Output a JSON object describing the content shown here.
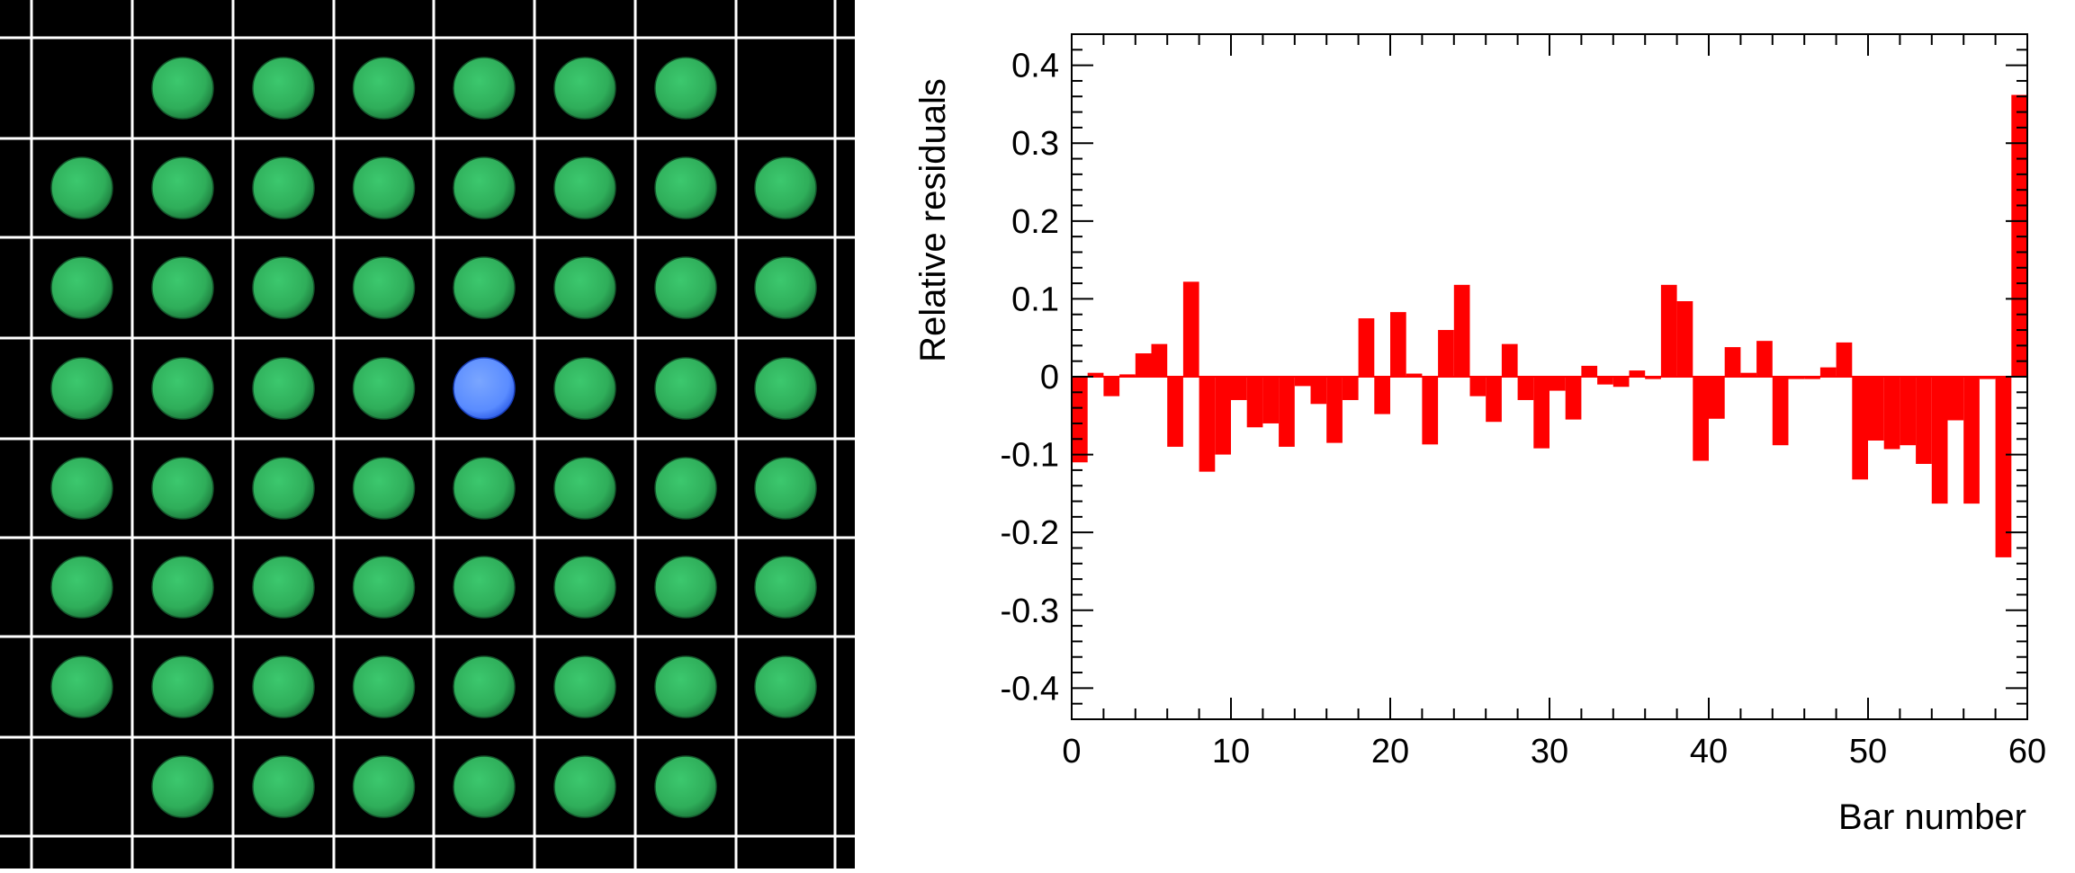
{
  "photo": {
    "background_color": "#000000",
    "grid_color": "#ffffff",
    "disc_color": "#2fae5a",
    "highlight_color": "#5a8cff",
    "rows": [
      [
        "empty",
        "disc",
        "disc",
        "disc",
        "disc",
        "disc",
        "disc",
        "empty"
      ],
      [
        "disc",
        "disc",
        "disc",
        "disc",
        "disc",
        "disc",
        "disc",
        "disc"
      ],
      [
        "disc",
        "disc",
        "disc",
        "disc",
        "disc",
        "disc",
        "disc",
        "disc"
      ],
      [
        "disc",
        "disc",
        "disc",
        "disc",
        "highlight",
        "disc",
        "disc",
        "disc"
      ],
      [
        "disc",
        "disc",
        "disc",
        "disc",
        "disc",
        "disc",
        "disc",
        "disc"
      ],
      [
        "disc",
        "disc",
        "disc",
        "disc",
        "disc",
        "disc",
        "disc",
        "disc"
      ],
      [
        "disc",
        "disc",
        "disc",
        "disc",
        "disc",
        "disc",
        "disc",
        "disc"
      ],
      [
        "empty",
        "disc",
        "disc",
        "disc",
        "disc",
        "disc",
        "disc",
        "empty"
      ]
    ]
  },
  "chart_data": {
    "type": "bar",
    "xlabel": "Bar number",
    "ylabel": "Relative residuals",
    "xlim": [
      0,
      60
    ],
    "ylim": [
      -0.44,
      0.44
    ],
    "xticks": [
      0,
      10,
      20,
      30,
      40,
      50,
      60
    ],
    "yticks": [
      -0.4,
      -0.3,
      -0.2,
      -0.1,
      0,
      0.1,
      0.2,
      0.3,
      0.4
    ],
    "ytick_labels": [
      "-0.4",
      "-0.3",
      "-0.2",
      "-0.1",
      "0",
      "0.1",
      "0.2",
      "0.3",
      "0.4"
    ],
    "bar_color": "#ff0000",
    "grid": false,
    "x": [
      0,
      1,
      2,
      3,
      4,
      5,
      6,
      7,
      8,
      9,
      10,
      11,
      12,
      13,
      14,
      15,
      16,
      17,
      18,
      19,
      20,
      21,
      22,
      23,
      24,
      25,
      26,
      27,
      28,
      29,
      30,
      31,
      32,
      33,
      34,
      35,
      36,
      37,
      38,
      39,
      40,
      41,
      42,
      43,
      44,
      45,
      46,
      47,
      48,
      49,
      50,
      51,
      52,
      53,
      54,
      55,
      56,
      57,
      58,
      59
    ],
    "values": [
      -0.11,
      0.005,
      -0.025,
      0.003,
      0.03,
      0.042,
      -0.09,
      0.122,
      -0.122,
      -0.1,
      -0.03,
      -0.065,
      -0.06,
      -0.09,
      -0.012,
      -0.035,
      -0.085,
      -0.03,
      0.075,
      -0.048,
      0.083,
      0.004,
      -0.087,
      0.06,
      0.118,
      -0.025,
      -0.058,
      0.042,
      -0.03,
      -0.092,
      -0.018,
      -0.055,
      0.014,
      -0.01,
      -0.013,
      0.008,
      -0.003,
      0.118,
      0.097,
      -0.108,
      -0.054,
      0.038,
      0.005,
      0.046,
      -0.088,
      -0.003,
      -0.003,
      0.012,
      0.044,
      -0.132,
      -0.082,
      -0.093,
      -0.088,
      -0.112,
      -0.163,
      -0.056,
      -0.163,
      -0.003,
      -0.232,
      0.362
    ]
  }
}
